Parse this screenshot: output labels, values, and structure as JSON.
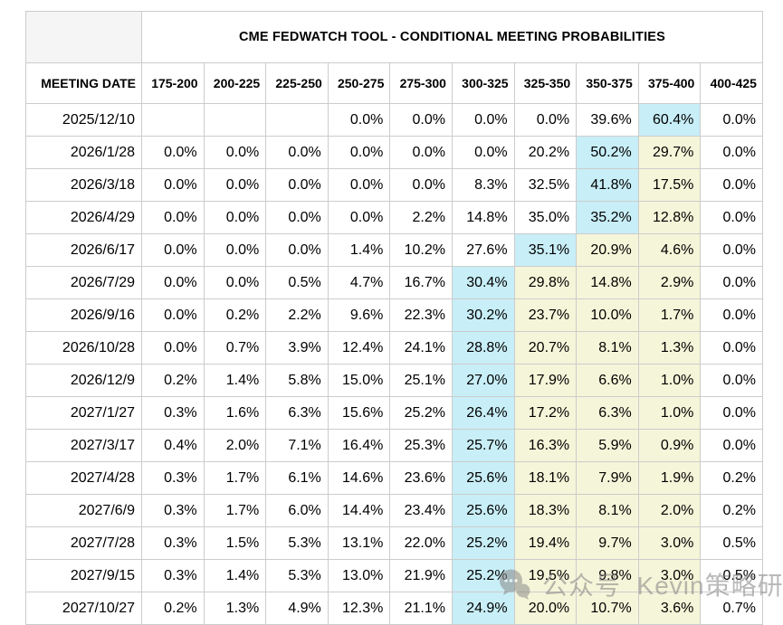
{
  "chart_data": {
    "type": "table",
    "title": "CME FEDWATCH TOOL - CONDITIONAL MEETING PROBABILITIES",
    "date_column_header": "MEETING DATE",
    "rate_range_columns": [
      "175-200",
      "200-225",
      "225-250",
      "250-275",
      "275-300",
      "300-325",
      "325-350",
      "350-375",
      "375-400",
      "400-425"
    ],
    "rows": [
      {
        "date": "2025/12/10",
        "values": [
          "",
          "",
          "",
          "0.0%",
          "0.0%",
          "0.0%",
          "0.0%",
          "39.6%",
          "60.4%",
          "0.0%"
        ],
        "cyan": 8,
        "yellow": []
      },
      {
        "date": "2026/1/28",
        "values": [
          "0.0%",
          "0.0%",
          "0.0%",
          "0.0%",
          "0.0%",
          "0.0%",
          "20.2%",
          "50.2%",
          "29.7%",
          "0.0%"
        ],
        "cyan": 7,
        "yellow": [
          8
        ]
      },
      {
        "date": "2026/3/18",
        "values": [
          "0.0%",
          "0.0%",
          "0.0%",
          "0.0%",
          "0.0%",
          "8.3%",
          "32.5%",
          "41.8%",
          "17.5%",
          "0.0%"
        ],
        "cyan": 7,
        "yellow": [
          8
        ]
      },
      {
        "date": "2026/4/29",
        "values": [
          "0.0%",
          "0.0%",
          "0.0%",
          "0.0%",
          "2.2%",
          "14.8%",
          "35.0%",
          "35.2%",
          "12.8%",
          "0.0%"
        ],
        "cyan": 7,
        "yellow": [
          8
        ]
      },
      {
        "date": "2026/6/17",
        "values": [
          "0.0%",
          "0.0%",
          "0.0%",
          "1.4%",
          "10.2%",
          "27.6%",
          "35.1%",
          "20.9%",
          "4.6%",
          "0.0%"
        ],
        "cyan": 6,
        "yellow": [
          7,
          8
        ]
      },
      {
        "date": "2026/7/29",
        "values": [
          "0.0%",
          "0.0%",
          "0.5%",
          "4.7%",
          "16.7%",
          "30.4%",
          "29.8%",
          "14.8%",
          "2.9%",
          "0.0%"
        ],
        "cyan": 5,
        "yellow": [
          6,
          7,
          8
        ]
      },
      {
        "date": "2026/9/16",
        "values": [
          "0.0%",
          "0.2%",
          "2.2%",
          "9.6%",
          "22.3%",
          "30.2%",
          "23.7%",
          "10.0%",
          "1.7%",
          "0.0%"
        ],
        "cyan": 5,
        "yellow": [
          6,
          7,
          8
        ]
      },
      {
        "date": "2026/10/28",
        "values": [
          "0.0%",
          "0.7%",
          "3.9%",
          "12.4%",
          "24.1%",
          "28.8%",
          "20.7%",
          "8.1%",
          "1.3%",
          "0.0%"
        ],
        "cyan": 5,
        "yellow": [
          6,
          7,
          8
        ]
      },
      {
        "date": "2026/12/9",
        "values": [
          "0.2%",
          "1.4%",
          "5.8%",
          "15.0%",
          "25.1%",
          "27.0%",
          "17.9%",
          "6.6%",
          "1.0%",
          "0.0%"
        ],
        "cyan": 5,
        "yellow": [
          6,
          7,
          8
        ]
      },
      {
        "date": "2027/1/27",
        "values": [
          "0.3%",
          "1.6%",
          "6.3%",
          "15.6%",
          "25.2%",
          "26.4%",
          "17.2%",
          "6.3%",
          "1.0%",
          "0.0%"
        ],
        "cyan": 5,
        "yellow": [
          6,
          7,
          8
        ]
      },
      {
        "date": "2027/3/17",
        "values": [
          "0.4%",
          "2.0%",
          "7.1%",
          "16.4%",
          "25.3%",
          "25.7%",
          "16.3%",
          "5.9%",
          "0.9%",
          "0.0%"
        ],
        "cyan": 5,
        "yellow": [
          6,
          7,
          8
        ]
      },
      {
        "date": "2027/4/28",
        "values": [
          "0.3%",
          "1.7%",
          "6.1%",
          "14.6%",
          "23.6%",
          "25.6%",
          "18.1%",
          "7.9%",
          "1.9%",
          "0.2%"
        ],
        "cyan": 5,
        "yellow": [
          6,
          7,
          8
        ]
      },
      {
        "date": "2027/6/9",
        "values": [
          "0.3%",
          "1.7%",
          "6.0%",
          "14.4%",
          "23.4%",
          "25.6%",
          "18.3%",
          "8.1%",
          "2.0%",
          "0.2%"
        ],
        "cyan": 5,
        "yellow": [
          6,
          7,
          8
        ]
      },
      {
        "date": "2027/7/28",
        "values": [
          "0.3%",
          "1.5%",
          "5.3%",
          "13.1%",
          "22.0%",
          "25.2%",
          "19.4%",
          "9.7%",
          "3.0%",
          "0.5%"
        ],
        "cyan": 5,
        "yellow": [
          6,
          7,
          8
        ]
      },
      {
        "date": "2027/9/15",
        "values": [
          "0.3%",
          "1.4%",
          "5.3%",
          "13.0%",
          "21.9%",
          "25.2%",
          "19.5%",
          "9.8%",
          "3.0%",
          "0.5%"
        ],
        "cyan": 5,
        "yellow": [
          6,
          7,
          8
        ]
      },
      {
        "date": "2027/10/27",
        "values": [
          "0.2%",
          "1.3%",
          "4.9%",
          "12.3%",
          "21.1%",
          "24.9%",
          "20.0%",
          "10.7%",
          "3.6%",
          "0.7%"
        ],
        "cyan": 5,
        "yellow": [
          6,
          7,
          8
        ]
      }
    ],
    "layout_hints": {
      "grid": true,
      "cyan_highlight_color": "#c8eef7",
      "yellow_highlight_color": "#f5f5d9",
      "border_color": "#cccccc"
    }
  },
  "watermark": {
    "icon": "wechat-icon",
    "text": "公众号  Kevin策略研究"
  }
}
